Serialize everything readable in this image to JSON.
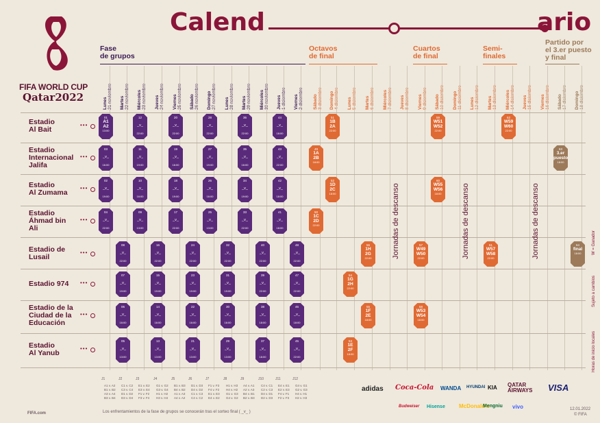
{
  "brand": {
    "line1": "FIFA WORLD CUP",
    "line2": "Qatar2022"
  },
  "title": {
    "left": "Calend",
    "right": "ario"
  },
  "sections": {
    "groups": "Fase\nde grupos",
    "r16": "Octavos\nde final",
    "qf": "Cuartos\nde final",
    "sf": "Semi-\nfinales",
    "final": "Partido por\nel 3.er puesto\ny final"
  },
  "days": [
    {
      "d": "Lunes",
      "f": "21 noviembre"
    },
    {
      "d": "Martes",
      "f": "22 noviembre"
    },
    {
      "d": "Miércoles",
      "f": "23 noviembre"
    },
    {
      "d": "Jueves",
      "f": "24 noviembre"
    },
    {
      "d": "Viernes",
      "f": "25 noviembre"
    },
    {
      "d": "Sábado",
      "f": "26 noviembre"
    },
    {
      "d": "Domingo",
      "f": "27 noviembre"
    },
    {
      "d": "Lunes",
      "f": "28 noviembre"
    },
    {
      "d": "Martes",
      "f": "29 noviembre"
    },
    {
      "d": "Miércoles",
      "f": "30 noviembre"
    },
    {
      "d": "Jueves",
      "f": "1 diciembre"
    },
    {
      "d": "Viernes",
      "f": "2 diciembre"
    },
    {
      "d": "Sábado",
      "f": "3 diciembre"
    },
    {
      "d": "Domingo",
      "f": "4 diciembre"
    },
    {
      "d": "Lunes",
      "f": "5 diciembre"
    },
    {
      "d": "Martes",
      "f": "6 diciembre"
    },
    {
      "d": "Miércoles",
      "f": "7 diciembre"
    },
    {
      "d": "Jueves",
      "f": "8 diciembre"
    },
    {
      "d": "Viernes",
      "f": "9 diciembre"
    },
    {
      "d": "Sábado",
      "f": "10 diciembre"
    },
    {
      "d": "Domingo",
      "f": "11 diciembre"
    },
    {
      "d": "Lunes",
      "f": "12 diciembre"
    },
    {
      "d": "Martes",
      "f": "13 diciembre"
    },
    {
      "d": "Miércoles",
      "f": "14 diciembre"
    },
    {
      "d": "Jueves",
      "f": "15 diciembre"
    },
    {
      "d": "Viernes",
      "f": "16 diciembre"
    },
    {
      "d": "Sábado",
      "f": "17 diciembre"
    },
    {
      "d": "Domingo",
      "f": "18 diciembre"
    }
  ],
  "stadiums": [
    "Estadio\nAl Bait",
    "Estadio\nInternacional\nJalifa",
    "Estadio\nAl Zumama",
    "Estadio\nÁhmad bin\nAli",
    "Estadio de\nLusail",
    "Estadio 974",
    "Estadio de la\nCiudad de la\nEducación",
    "Estadio\nAl Yanub"
  ],
  "rest_label": "Jornadas de descanso",
  "group_matches": [
    {
      "n": "01",
      "a": "A1",
      "b": "A2",
      "t": "13:00"
    },
    {
      "n": "12",
      "a": "_v_",
      "t": "22:00"
    },
    {
      "n": "20",
      "a": "_v_",
      "t": "22:00"
    },
    {
      "n": "28",
      "a": "_v_",
      "t": "22:00"
    },
    {
      "n": "36",
      "a": "_v_",
      "t": "22:00"
    },
    {
      "n": "44",
      "a": "_v_",
      "t": "18:00"
    },
    {
      "n": "03",
      "a": "_v_",
      "t": "16:00"
    },
    {
      "n": "11",
      "a": "_v_",
      "t": "19:00"
    },
    {
      "n": "19",
      "a": "_v_",
      "t": "16:00"
    },
    {
      "n": "27",
      "a": "_v_",
      "t": "19:00"
    },
    {
      "n": "35",
      "a": "_v_",
      "t": "16:00"
    },
    {
      "n": "43",
      "a": "_v_",
      "t": "22:00"
    },
    {
      "n": "02",
      "a": "_v_",
      "t": "19:00"
    },
    {
      "n": "10",
      "a": "_v_",
      "t": "16:00"
    },
    {
      "n": "18",
      "a": "_v_",
      "t": "19:00"
    },
    {
      "n": "26",
      "a": "_v_",
      "t": "16:00"
    },
    {
      "n": "34",
      "a": "_v_",
      "t": "19:00"
    },
    {
      "n": "42",
      "a": "_v_",
      "t": "18:00"
    },
    {
      "n": "04",
      "a": "_v_",
      "t": "22:00"
    },
    {
      "n": "09",
      "a": "_v_",
      "t": "13:00"
    },
    {
      "n": "17",
      "a": "_v_",
      "t": "22:00"
    },
    {
      "n": "25",
      "a": "_v_",
      "t": "13:00"
    },
    {
      "n": "33",
      "a": "_v_",
      "t": "22:00"
    },
    {
      "n": "41",
      "a": "_v_",
      "t": "18:00"
    },
    {
      "n": "08",
      "a": "_v_",
      "t": "22:00"
    },
    {
      "n": "16",
      "a": "_v_",
      "t": "22:00"
    },
    {
      "n": "24",
      "a": "_v_",
      "t": "22:00"
    },
    {
      "n": "32",
      "a": "_v_",
      "t": "22:00"
    },
    {
      "n": "40",
      "a": "_v_",
      "t": "22:00"
    },
    {
      "n": "48",
      "a": "_v_",
      "t": "22:00"
    },
    {
      "n": "07",
      "a": "_v_",
      "t": "19:00"
    },
    {
      "n": "15",
      "a": "_v_",
      "t": "19:00"
    },
    {
      "n": "23",
      "a": "_v_",
      "t": "19:00"
    },
    {
      "n": "31",
      "a": "_v_",
      "t": "19:00"
    },
    {
      "n": "39",
      "a": "_v_",
      "t": "22:00"
    },
    {
      "n": "47",
      "a": "_v_",
      "t": "22:00"
    },
    {
      "n": "06",
      "a": "_v_",
      "t": "16:00"
    },
    {
      "n": "14",
      "a": "_v_",
      "t": "16:00"
    },
    {
      "n": "22",
      "a": "_v_",
      "t": "16:00"
    },
    {
      "n": "30",
      "a": "_v_",
      "t": "16:00"
    },
    {
      "n": "38",
      "a": "_v_",
      "t": "18:00"
    },
    {
      "n": "46",
      "a": "_v_",
      "t": "18:00"
    },
    {
      "n": "05",
      "a": "_v_",
      "t": "13:00"
    },
    {
      "n": "13",
      "a": "_v_",
      "t": "13:00"
    },
    {
      "n": "21",
      "a": "_v_",
      "t": "13:00"
    },
    {
      "n": "29",
      "a": "_v_",
      "t": "13:00"
    },
    {
      "n": "37",
      "a": "_v_",
      "t": "18:00"
    },
    {
      "n": "45",
      "a": "_v_",
      "t": "22:00"
    }
  ],
  "ko_matches": [
    {
      "n": "51",
      "a": "1B",
      "b": "2A",
      "t": "22:00"
    },
    {
      "n": "59",
      "a": "W51",
      "b": "W52",
      "t": "22:00"
    },
    {
      "n": "62",
      "a": "W59",
      "b": "W60",
      "t": "22:00"
    },
    {
      "n": "49",
      "a": "1A",
      "b": "2B",
      "t": "18:00"
    },
    {
      "n": "63",
      "a": "3.er",
      "b": "puesto",
      "t": "18:00"
    },
    {
      "n": "52",
      "a": "1D",
      "b": "2C",
      "t": "18:00"
    },
    {
      "n": "60",
      "a": "W55",
      "b": "W56",
      "t": "18:00"
    },
    {
      "n": "50",
      "a": "1C",
      "b": "2D",
      "t": "22:00"
    },
    {
      "n": "56",
      "a": "1H",
      "b": "2G",
      "t": "22:00"
    },
    {
      "n": "57",
      "a": "W49",
      "b": "W50",
      "t": "22:00"
    },
    {
      "n": "61",
      "a": "W57",
      "b": "W58",
      "t": "22:00"
    },
    {
      "n": "64",
      "a": "final",
      "t": "18:00"
    },
    {
      "n": "54",
      "a": "1G",
      "b": "2H",
      "t": "22:00"
    },
    {
      "n": "55",
      "a": "1F",
      "b": "2E",
      "t": "18:00"
    },
    {
      "n": "58",
      "a": "W53",
      "b": "W54",
      "t": "18:00"
    },
    {
      "n": "53",
      "a": "1E",
      "b": "2F",
      "t": "18:00"
    }
  ],
  "side_notes": [
    "W = Ganador",
    "Sujeto a cambios",
    "Horas de inicio locales"
  ],
  "group_codes": [
    "J1",
    "J2",
    "J3",
    "J4",
    "J5",
    "J6",
    "J7",
    "J8",
    "J9",
    "J10",
    "J11",
    "J12"
  ],
  "group_pairs": [
    "A1 v. A2\nB1 v. B2\nA3 v. A4\nB3 v. B4",
    "C1 v. C2\nC3 v. C4\nD1 v. D2\nD3 v. D4",
    "E1 v. E2\nE3 v. E4\nF1 v. F2\nF3 v. F4",
    "G1 v. G2\nG3 v. G4\nH1 v. H2\nH3 v. H4",
    "B1 v. B3\nB4 v. B2\nA1 v. A3\nA4 v. A2",
    "D1 v. D3\nD4 v. D2\nC1 v. C3\nC4 v. C2",
    "F1 v. F3\nF4 v. F2\nE1 v. E3\nE4 v. E2",
    "H1 v. H3\nH4 v. H2\nG1 v. G3\nG4 v. G2",
    "A4 v. A1\nA2 v. A3\nB4 v. B1\nB2 v. B3",
    "C4 v. C1\nC2 v. C3\nD4 v. D1\nD2 v. D3",
    "E4 v. E1\nE2 v. E3\nF4 v. F1\nF2 v. F3",
    "G4 v. G1\nG2 v. G3\nH4 v. H1\nH2 v. H3"
  ],
  "footer_note": "Los enfrentamientos de la fase de grupos se conocerán tras el sorteo final ( _v_ )",
  "footer_left": "FIFA.com",
  "footer_date": "12.01.2022",
  "footer_copy": "© FIFA",
  "sponsors_top": [
    "adidas",
    "Coca-Cola",
    "WANDA",
    "HYUNDAI",
    "KIA",
    "QATAR AIRWAYS",
    "VISA"
  ],
  "sponsors_bottom": [
    "Budweiser",
    "Hisense",
    "McDonald's",
    "Mengniu",
    "vivo"
  ],
  "colors": {
    "maroon": "#8a1538",
    "purple": "#5a2a7a",
    "orange": "#e06a33",
    "brown": "#9c7a5a",
    "bg": "#efe9dd"
  }
}
